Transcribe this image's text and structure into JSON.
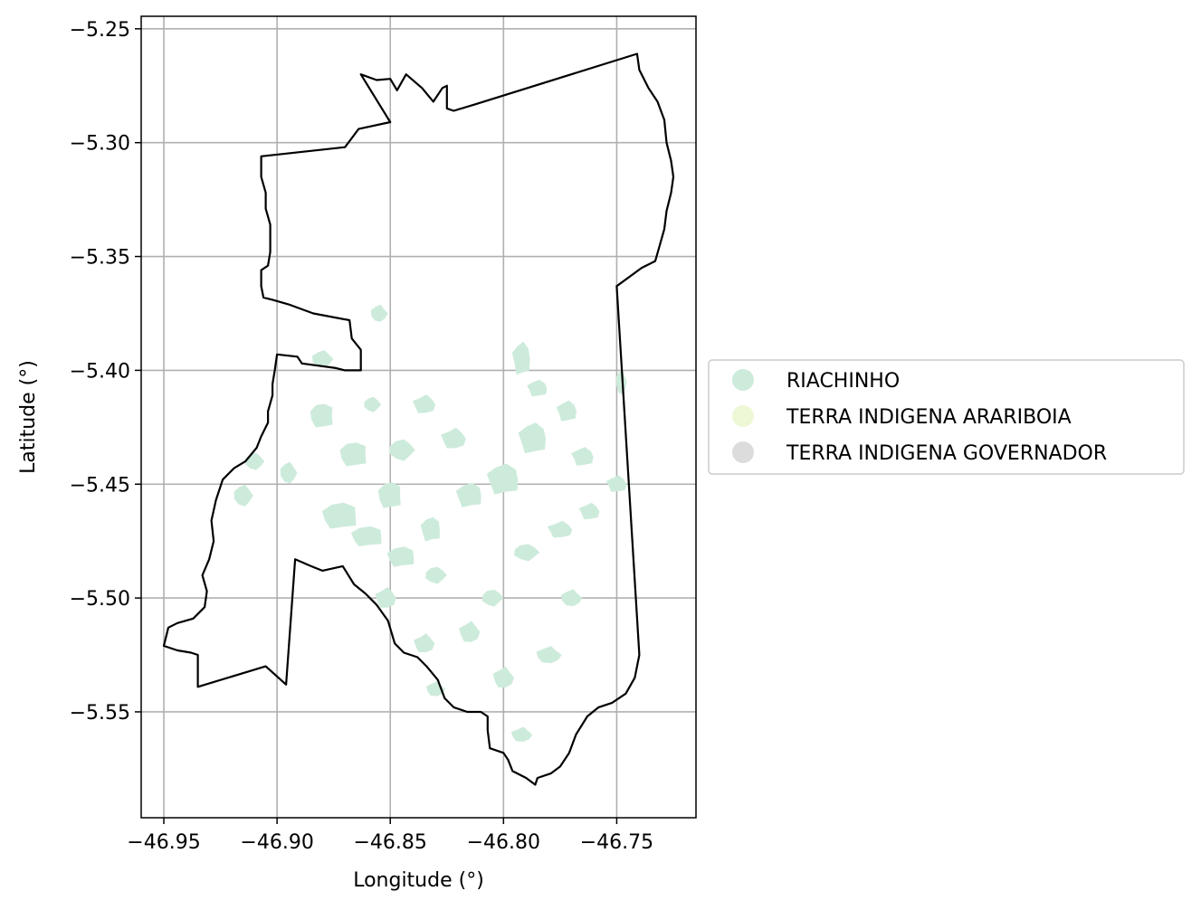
{
  "chart_data": {
    "type": "map",
    "xlabel": "Longitude (°)",
    "ylabel": "Latitude (°)",
    "xlim": [
      -46.96,
      -46.715
    ],
    "ylim": [
      -5.5965,
      -5.2445
    ],
    "xticks": [
      -46.95,
      -46.9,
      -46.85,
      -46.8,
      -46.75
    ],
    "xtick_labels": [
      "−46.95",
      "−46.90",
      "−46.85",
      "−46.80",
      "−46.75"
    ],
    "yticks": [
      -5.25,
      -5.3,
      -5.35,
      -5.4,
      -5.45,
      -5.5,
      -5.55
    ],
    "ytick_labels": [
      "−5.25",
      "−5.30",
      "−5.35",
      "−5.40",
      "−5.45",
      "−5.50",
      "−5.55"
    ],
    "grid": true,
    "legend_position": "center-left outside right",
    "legend": [
      {
        "label": "RIACHINHO",
        "color": "#cdebdb"
      },
      {
        "label": "TERRA INDIGENA ARARIBOIA",
        "color": "#eef7d6"
      },
      {
        "label": "TERRA INDIGENA GOVERNADOR",
        "color": "#dcdcdc"
      }
    ],
    "boundary": [
      [
        -46.863,
        -5.27
      ],
      [
        -46.856,
        -5.2725
      ],
      [
        -46.85,
        -5.272
      ],
      [
        -46.847,
        -5.277
      ],
      [
        -46.843,
        -5.27
      ],
      [
        -46.836,
        -5.276
      ],
      [
        -46.831,
        -5.282
      ],
      [
        -46.827,
        -5.276
      ],
      [
        -46.825,
        -5.275
      ],
      [
        -46.825,
        -5.285
      ],
      [
        -46.822,
        -5.286
      ],
      [
        -46.812,
        -5.283
      ],
      [
        -46.741,
        -5.261
      ],
      [
        -46.74,
        -5.268
      ],
      [
        -46.736,
        -5.276
      ],
      [
        -46.732,
        -5.282
      ],
      [
        -46.729,
        -5.29
      ],
      [
        -46.728,
        -5.3
      ],
      [
        -46.726,
        -5.308
      ],
      [
        -46.725,
        -5.315
      ],
      [
        -46.726,
        -5.322
      ],
      [
        -46.728,
        -5.33
      ],
      [
        -46.729,
        -5.338
      ],
      [
        -46.731,
        -5.345
      ],
      [
        -46.733,
        -5.352
      ],
      [
        -46.739,
        -5.355
      ],
      [
        -46.75,
        -5.363
      ],
      [
        -46.74,
        -5.525
      ],
      [
        -46.742,
        -5.535
      ],
      [
        -46.746,
        -5.542
      ],
      [
        -46.752,
        -5.546
      ],
      [
        -46.758,
        -5.548
      ],
      [
        -46.763,
        -5.552
      ],
      [
        -46.768,
        -5.56
      ],
      [
        -46.771,
        -5.568
      ],
      [
        -46.775,
        -5.574
      ],
      [
        -46.779,
        -5.577
      ],
      [
        -46.785,
        -5.579
      ],
      [
        -46.786,
        -5.582
      ],
      [
        -46.79,
        -5.579
      ],
      [
        -46.796,
        -5.576
      ],
      [
        -46.798,
        -5.571
      ],
      [
        -46.8,
        -5.568
      ],
      [
        -46.806,
        -5.566
      ],
      [
        -46.807,
        -5.558
      ],
      [
        -46.807,
        -5.552
      ],
      [
        -46.81,
        -5.55
      ],
      [
        -46.816,
        -5.55
      ],
      [
        -46.822,
        -5.548
      ],
      [
        -46.826,
        -5.544
      ],
      [
        -46.829,
        -5.536
      ],
      [
        -46.834,
        -5.53
      ],
      [
        -46.838,
        -5.526
      ],
      [
        -46.844,
        -5.524
      ],
      [
        -46.848,
        -5.52
      ],
      [
        -46.851,
        -5.51
      ],
      [
        -46.856,
        -5.503
      ],
      [
        -46.861,
        -5.498
      ],
      [
        -46.866,
        -5.494
      ],
      [
        -46.871,
        -5.486
      ],
      [
        -46.88,
        -5.488
      ],
      [
        -46.885,
        -5.486
      ],
      [
        -46.892,
        -5.483
      ],
      [
        -46.896,
        -5.538
      ],
      [
        -46.905,
        -5.53
      ],
      [
        -46.935,
        -5.539
      ],
      [
        -46.935,
        -5.525
      ],
      [
        -46.938,
        -5.524
      ],
      [
        -46.944,
        -5.523
      ],
      [
        -46.95,
        -5.521
      ],
      [
        -46.948,
        -5.513
      ],
      [
        -46.944,
        -5.511
      ],
      [
        -46.937,
        -5.509
      ],
      [
        -46.932,
        -5.504
      ],
      [
        -46.931,
        -5.497
      ],
      [
        -46.933,
        -5.49
      ],
      [
        -46.93,
        -5.483
      ],
      [
        -46.928,
        -5.475
      ],
      [
        -46.929,
        -5.466
      ],
      [
        -46.927,
        -5.457
      ],
      [
        -46.924,
        -5.448
      ],
      [
        -46.919,
        -5.443
      ],
      [
        -46.914,
        -5.44
      ],
      [
        -46.909,
        -5.434
      ],
      [
        -46.907,
        -5.429
      ],
      [
        -46.904,
        -5.423
      ],
      [
        -46.904,
        -5.418
      ],
      [
        -46.902,
        -5.411
      ],
      [
        -46.902,
        -5.406
      ],
      [
        -46.901,
        -5.4
      ],
      [
        -46.9,
        -5.393
      ],
      [
        -46.891,
        -5.394
      ],
      [
        -46.889,
        -5.397
      ],
      [
        -46.874,
        -5.399
      ],
      [
        -46.87,
        -5.4
      ],
      [
        -46.863,
        -5.4
      ],
      [
        -46.863,
        -5.391
      ],
      [
        -46.867,
        -5.386
      ],
      [
        -46.868,
        -5.378
      ],
      [
        -46.884,
        -5.375
      ],
      [
        -46.895,
        -5.371
      ],
      [
        -46.902,
        -5.369
      ],
      [
        -46.906,
        -5.368
      ],
      [
        -46.907,
        -5.363
      ],
      [
        -46.907,
        -5.356
      ],
      [
        -46.904,
        -5.354
      ],
      [
        -46.903,
        -5.348
      ],
      [
        -46.903,
        -5.342
      ],
      [
        -46.903,
        -5.336
      ],
      [
        -46.905,
        -5.329
      ],
      [
        -46.905,
        -5.322
      ],
      [
        -46.907,
        -5.315
      ],
      [
        -46.907,
        -5.306
      ],
      [
        -46.87,
        -5.302
      ],
      [
        -46.864,
        -5.294
      ],
      [
        -46.85,
        -5.291
      ],
      [
        -46.863,
        -5.27
      ]
    ],
    "riachinho_patches": [
      [
        -46.88,
        -5.42,
        0.012,
        0.012
      ],
      [
        -46.866,
        -5.437,
        0.014,
        0.012
      ],
      [
        -46.85,
        -5.455,
        0.012,
        0.013
      ],
      [
        -46.872,
        -5.464,
        0.018,
        0.013
      ],
      [
        -46.86,
        -5.473,
        0.016,
        0.01
      ],
      [
        -46.845,
        -5.482,
        0.014,
        0.01
      ],
      [
        -46.832,
        -5.47,
        0.01,
        0.012
      ],
      [
        -46.815,
        -5.455,
        0.013,
        0.012
      ],
      [
        -46.8,
        -5.448,
        0.016,
        0.015
      ],
      [
        -46.787,
        -5.43,
        0.014,
        0.015
      ],
      [
        -46.792,
        -5.395,
        0.009,
        0.016
      ],
      [
        -46.785,
        -5.408,
        0.01,
        0.008
      ],
      [
        -46.772,
        -5.418,
        0.01,
        0.01
      ],
      [
        -46.765,
        -5.438,
        0.011,
        0.009
      ],
      [
        -46.75,
        -5.45,
        0.01,
        0.008
      ],
      [
        -46.762,
        -5.462,
        0.01,
        0.008
      ],
      [
        -46.775,
        -5.47,
        0.012,
        0.008
      ],
      [
        -46.835,
        -5.415,
        0.011,
        0.009
      ],
      [
        -46.822,
        -5.43,
        0.012,
        0.01
      ],
      [
        -46.852,
        -5.5,
        0.01,
        0.01
      ],
      [
        -46.835,
        -5.52,
        0.01,
        0.009
      ],
      [
        -46.815,
        -5.515,
        0.01,
        0.01
      ],
      [
        -46.8,
        -5.535,
        0.01,
        0.01
      ],
      [
        -46.792,
        -5.56,
        0.01,
        0.007
      ],
      [
        -46.83,
        -5.54,
        0.009,
        0.007
      ],
      [
        -46.78,
        -5.525,
        0.012,
        0.008
      ],
      [
        -46.77,
        -5.5,
        0.01,
        0.008
      ],
      [
        -46.748,
        -5.405,
        0.005,
        0.012
      ],
      [
        -46.855,
        -5.375,
        0.008,
        0.008
      ],
      [
        -46.88,
        -5.395,
        0.01,
        0.008
      ],
      [
        -46.895,
        -5.445,
        0.008,
        0.01
      ],
      [
        -46.915,
        -5.455,
        0.009,
        0.01
      ],
      [
        -46.91,
        -5.44,
        0.009,
        0.008
      ],
      [
        -46.858,
        -5.415,
        0.008,
        0.007
      ],
      [
        -46.845,
        -5.435,
        0.012,
        0.01
      ],
      [
        -46.83,
        -5.49,
        0.01,
        0.008
      ],
      [
        -46.79,
        -5.48,
        0.012,
        0.008
      ],
      [
        -46.805,
        -5.5,
        0.01,
        0.008
      ]
    ]
  }
}
